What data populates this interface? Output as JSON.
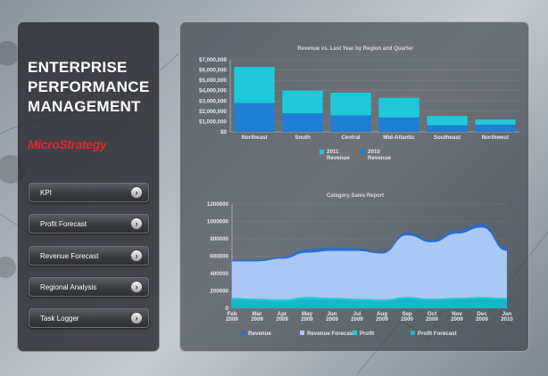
{
  "app": {
    "title_lines": [
      "ENTERPRISE",
      "PERFORMANCE",
      "MANAGEMENT"
    ],
    "logo_text": "MicroStrategy"
  },
  "nav": {
    "items": [
      {
        "label": "KPI"
      },
      {
        "label": "Profit Forecast"
      },
      {
        "label": "Revenue Forecast"
      },
      {
        "label": "Regional Analysis"
      },
      {
        "label": "Task Logger"
      }
    ]
  },
  "colors": {
    "cyan": "#1ec8d8",
    "blue": "#1f7fd6",
    "light_blue": "#a9c8f5",
    "dark_blue": "#2a6fc8",
    "panel_dark": "#2d2f33"
  },
  "chart_data": [
    {
      "type": "bar",
      "title": "Revenue vs. Last Year by Region and Quarter",
      "categories": [
        "Northeast",
        "South",
        "Central",
        "Mid-Atlantic",
        "Southeast",
        "Northwest"
      ],
      "series": [
        {
          "name": "2010 Revenue",
          "values": [
            2800000,
            1800000,
            1600000,
            1400000,
            650000,
            700000
          ]
        },
        {
          "name": "2011 Revenue",
          "values": [
            3500000,
            2200000,
            2200000,
            1900000,
            900000,
            500000
          ]
        }
      ],
      "stacked": true,
      "yticks": [
        "$7,000,000",
        "$6,000,000",
        "$5,000,000",
        "$4,000,000",
        "$3,000,000",
        "$2,000,000",
        "$1,000,000",
        "$0"
      ],
      "ylim": [
        0,
        7000000
      ],
      "legend": [
        {
          "line1": "2011",
          "line2": "Revenue"
        },
        {
          "line1": "2010",
          "line2": "Revenue"
        }
      ]
    },
    {
      "type": "area",
      "title": "Category Sales Report",
      "x": [
        "Feb 2009",
        "Mar 2009",
        "Apr 2009",
        "May 2009",
        "Jun 2009",
        "Jul 2009",
        "Aug 2009",
        "Sep 2009",
        "Oct 2009",
        "Nov 2009",
        "Dec 2009",
        "Jan 2010"
      ],
      "xticks": [
        [
          "Feb",
          "2009"
        ],
        [
          "Mar",
          "2009"
        ],
        [
          "Apr",
          "2009"
        ],
        [
          "May",
          "2009"
        ],
        [
          "Jun",
          "2009"
        ],
        [
          "Jul",
          "2009"
        ],
        [
          "Aug",
          "2009"
        ],
        [
          "Sep",
          "2009"
        ],
        [
          "Oct",
          "2009"
        ],
        [
          "Nov",
          "2009"
        ],
        [
          "Dec",
          "2009"
        ],
        [
          "Jan",
          "2010"
        ]
      ],
      "yticks": [
        "1200000",
        "1000000",
        "800000",
        "600000",
        "400000",
        "200000",
        "0"
      ],
      "ylim": [
        0,
        1200000
      ],
      "series": [
        {
          "name": "Revenue",
          "values": [
            560000,
            560000,
            590000,
            680000,
            700000,
            690000,
            650000,
            870000,
            790000,
            900000,
            970000,
            690000
          ]
        },
        {
          "name": "Revenue Forecast",
          "values": [
            540000,
            540000,
            570000,
            640000,
            660000,
            660000,
            630000,
            840000,
            760000,
            860000,
            930000,
            660000
          ]
        },
        {
          "name": "Profit",
          "values": [
            120000,
            110000,
            100000,
            130000,
            120000,
            110000,
            100000,
            130000,
            110000,
            120000,
            130000,
            120000
          ]
        },
        {
          "name": "Profit Forecast",
          "values": [
            100000,
            90000,
            80000,
            100000,
            100000,
            90000,
            80000,
            110000,
            90000,
            100000,
            110000,
            100000
          ]
        }
      ],
      "legend": [
        "Revenue",
        "Revenue Forecast",
        "Profit",
        "Profit Forecast"
      ]
    }
  ]
}
